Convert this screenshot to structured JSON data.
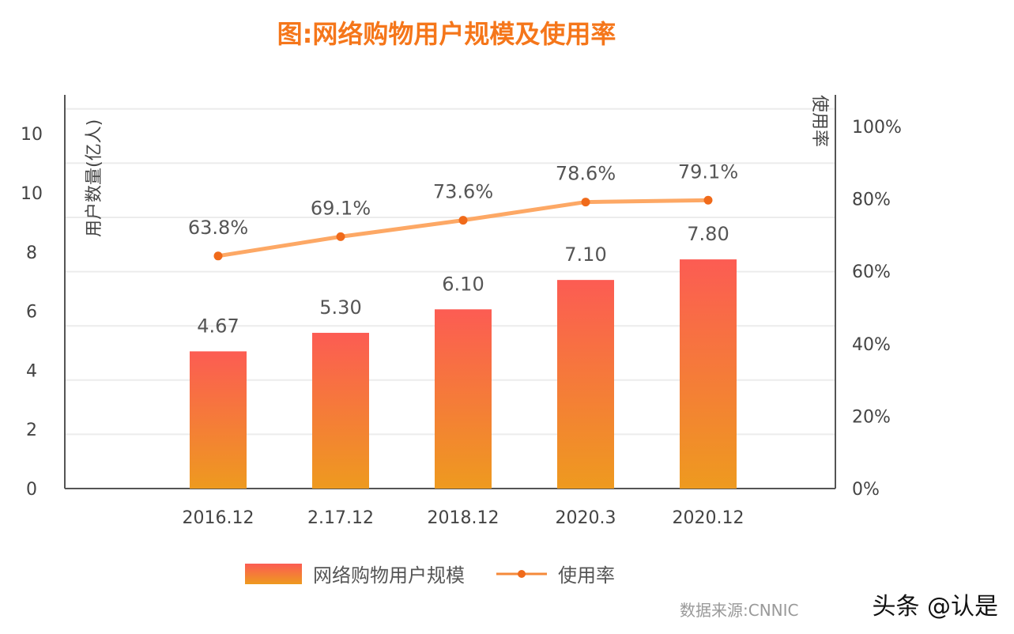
{
  "chart_data": {
    "type": "bar+line",
    "title": "图:网络购物用户规模及使用率",
    "categories": [
      "2016.12",
      "2.17.12",
      "2018.12",
      "2020.3",
      "2020.12"
    ],
    "series": [
      {
        "name": "网络购物用户规模",
        "type": "bar",
        "axis": "left",
        "values": [
          4.67,
          5.3,
          6.1,
          7.1,
          7.8
        ],
        "labels": [
          "4.67",
          "5.30",
          "6.10",
          "7.10",
          "7.80"
        ],
        "color_top": "#fc5c53",
        "color_bottom": "#ee9a1f"
      },
      {
        "name": "使用率",
        "type": "line",
        "axis": "right",
        "values": [
          63.8,
          69.1,
          73.6,
          78.6,
          79.1
        ],
        "labels": [
          "63.8%",
          "69.1%",
          "73.6%",
          "78.6%",
          "79.1%"
        ],
        "color": "#fda865",
        "marker_color": "#f06a1a"
      }
    ],
    "ylabel_left": "用户数量(亿人)",
    "ylabel_right": "使用率",
    "yticks_left": [
      "0",
      "2",
      "4",
      "6",
      "8",
      "10",
      "10"
    ],
    "yticks_right": [
      "0%",
      "20%",
      "40%",
      "60%",
      "80%",
      "100%"
    ],
    "ylim_left": [
      0,
      13.4
    ],
    "ylim_right": [
      0,
      108
    ],
    "grid": true,
    "legend_position": "bottom"
  },
  "watermark": {
    "source": "数据来源:CNNIC",
    "author": "头条 @认是"
  }
}
